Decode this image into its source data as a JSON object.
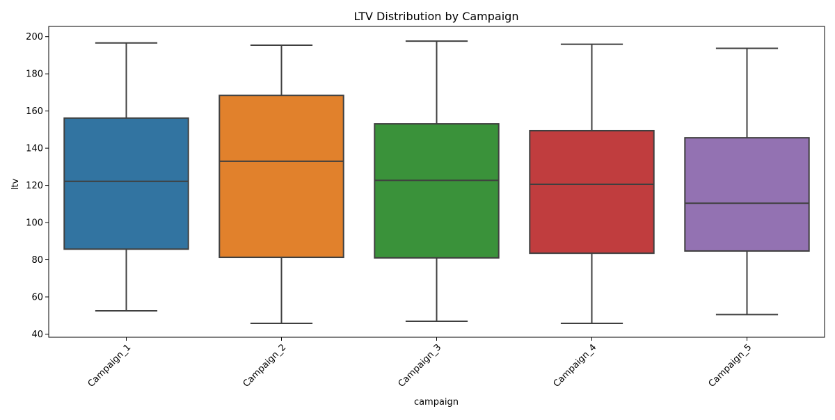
{
  "chart_data": {
    "type": "box",
    "title": "LTV Distribution by Campaign",
    "xlabel": "campaign",
    "ylabel": "ltv",
    "ylim": [
      38.3,
      205.5
    ],
    "yticks": [
      40,
      60,
      80,
      100,
      120,
      140,
      160,
      180,
      200
    ],
    "ytick_labels": [
      "40",
      "60",
      "80",
      "100",
      "120",
      "140",
      "160",
      "180",
      "200"
    ],
    "categories": [
      "Campaign_1",
      "Campaign_2",
      "Campaign_3",
      "Campaign_4",
      "Campaign_5"
    ],
    "series": [
      {
        "category": "Campaign_1",
        "min": 52.5,
        "q1": 85.7,
        "median": 122.2,
        "q3": 156.2,
        "max": 196.6,
        "color": "#3274a1"
      },
      {
        "category": "Campaign_2",
        "min": 45.8,
        "q1": 81.3,
        "median": 133.0,
        "q3": 168.4,
        "max": 195.4,
        "color": "#e1812c"
      },
      {
        "category": "Campaign_3",
        "min": 46.9,
        "q1": 81.0,
        "median": 122.7,
        "q3": 153.1,
        "max": 197.6,
        "color": "#3a923a"
      },
      {
        "category": "Campaign_4",
        "min": 45.8,
        "q1": 83.5,
        "median": 120.6,
        "q3": 149.4,
        "max": 195.9,
        "color": "#c03d3e"
      },
      {
        "category": "Campaign_5",
        "min": 50.5,
        "q1": 84.7,
        "median": 110.4,
        "q3": 145.6,
        "max": 193.7,
        "color": "#9372b2"
      }
    ],
    "grid": false,
    "legend": "none"
  }
}
